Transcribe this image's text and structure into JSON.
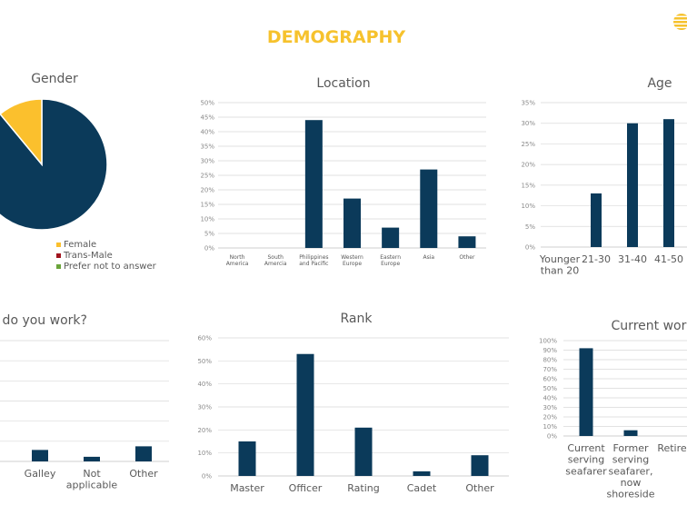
{
  "page": {
    "title": "DEMOGRAPHY"
  },
  "colors": {
    "bar": "#0b3a5a",
    "accent": "#f6c22d",
    "grid": "#d9d9d9"
  },
  "chart_data": [
    {
      "id": "gender",
      "type": "pie",
      "title": "Gender",
      "slices": [
        {
          "value": 89,
          "color": "#0b3a5a"
        },
        {
          "name": "Female",
          "value": 11,
          "color": "#fbc02d"
        }
      ],
      "legend": [
        {
          "name": "Female",
          "color": "#fbc02d"
        },
        {
          "name": "Trans-Male",
          "color": "#a0141e"
        },
        {
          "name": "Prefer not to answer",
          "color": "#6aa43a"
        }
      ],
      "legend_position": "bottom"
    },
    {
      "id": "location",
      "type": "bar",
      "title": "Location",
      "categories": [
        "North America",
        "South Amercia",
        "Philippines and Pacific",
        "Western Europe",
        "Eastern Europe",
        "Asia",
        "Other"
      ],
      "values": [
        0,
        0,
        44,
        17,
        7,
        27,
        4
      ],
      "ylim": [
        0,
        50
      ],
      "ytick_step": 5,
      "ytick_format": "%",
      "grid": true
    },
    {
      "id": "age",
      "type": "bar",
      "title": "Age",
      "categories": [
        "Younger than 20",
        "21-30",
        "31-40",
        "41-50"
      ],
      "values": [
        0,
        13,
        30,
        31
      ],
      "ylim": [
        0,
        35
      ],
      "ytick_step": 5,
      "ytick_format": "%",
      "grid": true
    },
    {
      "id": "workplace",
      "type": "bar",
      "title": "re do you work?",
      "categories": [
        "Galley",
        "Not applicable",
        "Other"
      ],
      "values": [
        0.57,
        0.23,
        0.75
      ],
      "ylim": [
        0,
        6
      ],
      "ytick_step": 1,
      "ytick_format": "",
      "grid": true
    },
    {
      "id": "rank",
      "type": "bar",
      "title": "Rank",
      "categories": [
        "Master",
        "Officer",
        "Rating",
        "Cadet",
        "Other"
      ],
      "values": [
        15,
        53,
        21,
        2,
        9
      ],
      "ylim": [
        0,
        60
      ],
      "ytick_step": 10,
      "ytick_format": "%",
      "grid": true
    },
    {
      "id": "current_work",
      "type": "bar",
      "title": "Current work",
      "categories": [
        "Current serving seafarer",
        "Former serving seafarer, now shoreside",
        "Retired"
      ],
      "values": [
        92,
        6,
        0
      ],
      "ylim": [
        0,
        100
      ],
      "ytick_step": 10,
      "ytick_format": "%",
      "grid": true
    }
  ]
}
